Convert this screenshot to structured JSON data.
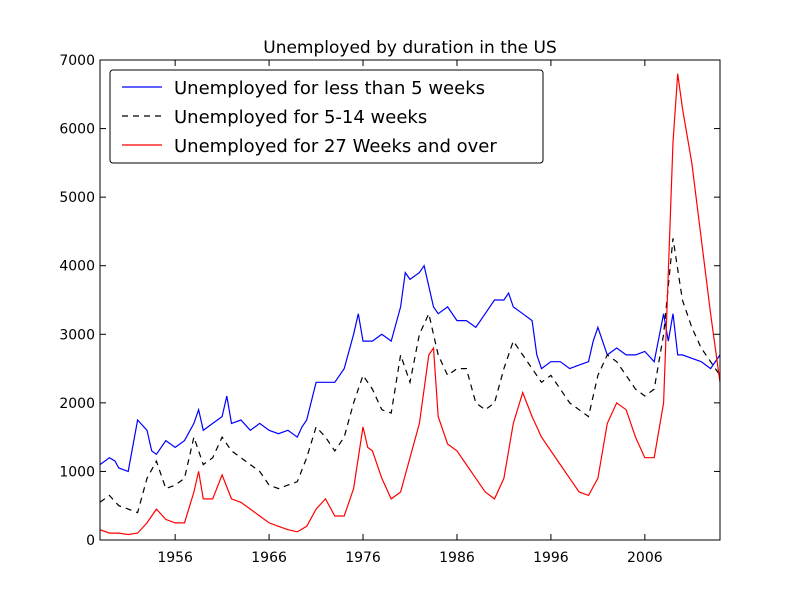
{
  "chart_data": {
    "type": "line",
    "title": "Unemployed by duration in the US",
    "xlabel": "",
    "ylabel": "",
    "xlim": [
      1948,
      2014
    ],
    "ylim": [
      0,
      7000
    ],
    "x_ticks": [
      1956,
      1966,
      1976,
      1986,
      1996,
      2006
    ],
    "y_ticks": [
      0,
      1000,
      2000,
      3000,
      4000,
      5000,
      6000,
      7000
    ],
    "grid": false,
    "legend_position": "top-left",
    "series": [
      {
        "name": "Unemployed for less than 5 weeks",
        "color": "#0000ff",
        "style": "solid",
        "x": [
          1948,
          1949,
          1949.6,
          1950,
          1951,
          1952,
          1953,
          1953.5,
          1954,
          1955,
          1956,
          1957,
          1958,
          1958.5,
          1959,
          1960,
          1961,
          1961.5,
          1962,
          1963,
          1964,
          1965,
          1966,
          1967,
          1968,
          1969,
          1969.5,
          1970,
          1971,
          1972,
          1973,
          1974,
          1975,
          1975.5,
          1976,
          1977,
          1978,
          1979,
          1980,
          1980.5,
          1981,
          1982,
          1982.5,
          1983,
          1983.5,
          1984,
          1985,
          1986,
          1987,
          1988,
          1989,
          1990,
          1991,
          1991.5,
          1992,
          1993,
          1994,
          1994.5,
          1995,
          1996,
          1997,
          1998,
          1999,
          2000,
          2000.5,
          2001,
          2002,
          2003,
          2004,
          2005,
          2006,
          2007,
          2008,
          2008.5,
          2009,
          2009.5,
          2010,
          2011,
          2012,
          2013,
          2014
        ],
        "y": [
          1100,
          1200,
          1150,
          1050,
          1000,
          1750,
          1600,
          1300,
          1250,
          1450,
          1350,
          1450,
          1700,
          1900,
          1600,
          1700,
          1800,
          2100,
          1700,
          1750,
          1600,
          1700,
          1600,
          1550,
          1600,
          1500,
          1650,
          1750,
          2300,
          2300,
          2300,
          2500,
          3000,
          3300,
          2900,
          2900,
          3000,
          2900,
          3400,
          3900,
          3800,
          3900,
          4000,
          3700,
          3400,
          3300,
          3400,
          3200,
          3200,
          3100,
          3300,
          3500,
          3500,
          3600,
          3400,
          3300,
          3200,
          2700,
          2500,
          2600,
          2600,
          2500,
          2550,
          2600,
          2900,
          3100,
          2700,
          2800,
          2700,
          2700,
          2750,
          2600,
          3300,
          2900,
          3300,
          2700,
          2700,
          2650,
          2600,
          2500,
          2700
        ]
      },
      {
        "name": "Unemployed for 5-14 weeks",
        "color": "#000000",
        "style": "dashed",
        "x": [
          1948,
          1949,
          1950,
          1951,
          1952,
          1953,
          1954,
          1955,
          1956,
          1957,
          1958,
          1959,
          1960,
          1961,
          1962,
          1963,
          1964,
          1965,
          1966,
          1967,
          1968,
          1969,
          1970,
          1971,
          1972,
          1973,
          1974,
          1975,
          1976,
          1977,
          1978,
          1979,
          1980,
          1981,
          1982,
          1983,
          1984,
          1985,
          1986,
          1987,
          1988,
          1989,
          1990,
          1991,
          1992,
          1993,
          1994,
          1995,
          1996,
          1997,
          1998,
          1999,
          2000,
          2001,
          2002,
          2003,
          2004,
          2005,
          2006,
          2007,
          2008,
          2009,
          2010,
          2011,
          2012,
          2013,
          2014
        ],
        "y": [
          550,
          650,
          500,
          450,
          400,
          900,
          1150,
          750,
          800,
          900,
          1500,
          1100,
          1200,
          1500,
          1300,
          1200,
          1100,
          1000,
          800,
          750,
          800,
          850,
          1200,
          1650,
          1500,
          1300,
          1500,
          2000,
          2400,
          2200,
          1900,
          1850,
          2700,
          2300,
          3000,
          3300,
          2700,
          2400,
          2500,
          2500,
          2000,
          1900,
          2000,
          2500,
          2900,
          2700,
          2500,
          2300,
          2400,
          2200,
          2000,
          1900,
          1800,
          2400,
          2700,
          2600,
          2400,
          2200,
          2100,
          2200,
          3000,
          4400,
          3500,
          3100,
          2800,
          2600,
          2400
        ]
      },
      {
        "name": "Unemployed for 27 Weeks and over",
        "color": "#ff0000",
        "style": "solid",
        "x": [
          1948,
          1949,
          1950,
          1951,
          1952,
          1953,
          1954,
          1955,
          1956,
          1957,
          1958,
          1958.5,
          1959,
          1960,
          1961,
          1962,
          1963,
          1964,
          1965,
          1966,
          1967,
          1968,
          1969,
          1970,
          1971,
          1972,
          1973,
          1974,
          1975,
          1976,
          1976.5,
          1977,
          1978,
          1979,
          1980,
          1981,
          1982,
          1983,
          1983.5,
          1984,
          1985,
          1986,
          1987,
          1988,
          1989,
          1990,
          1991,
          1992,
          1993,
          1994,
          1995,
          1996,
          1997,
          1998,
          1999,
          2000,
          2001,
          2002,
          2003,
          2004,
          2005,
          2006,
          2007,
          2008,
          2009,
          2009.5,
          2010,
          2011,
          2012,
          2013,
          2014
        ],
        "y": [
          150,
          100,
          100,
          80,
          100,
          250,
          450,
          300,
          250,
          250,
          700,
          1000,
          600,
          600,
          950,
          600,
          550,
          450,
          350,
          250,
          200,
          150,
          120,
          200,
          450,
          600,
          350,
          350,
          750,
          1650,
          1350,
          1300,
          900,
          600,
          700,
          1200,
          1700,
          2700,
          2800,
          1800,
          1400,
          1300,
          1100,
          900,
          700,
          600,
          900,
          1700,
          2150,
          1800,
          1500,
          1300,
          1100,
          900,
          700,
          650,
          900,
          1700,
          2000,
          1900,
          1500,
          1200,
          1200,
          2000,
          5800,
          6800,
          6300,
          5500,
          4400,
          3300,
          2300
        ]
      }
    ]
  }
}
